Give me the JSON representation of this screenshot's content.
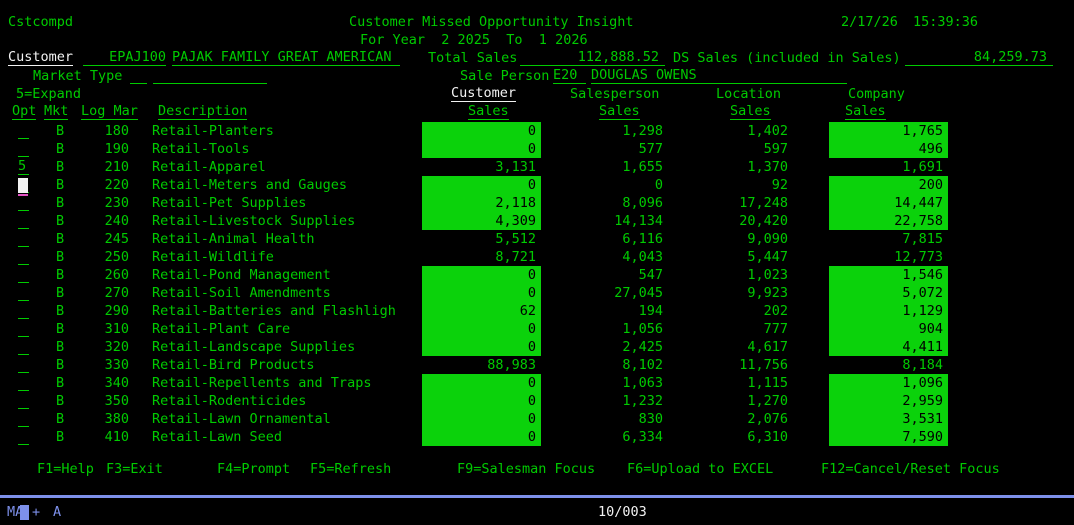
{
  "screen": {
    "program": "Cstcompd",
    "title": "Customer Missed Opportunity Insight",
    "date": "2/17/26",
    "time": "15:39:36",
    "subtitle": "For Year  2 2025  To  1 2026"
  },
  "header": {
    "customer_label": "Customer",
    "customer_code": "EPAJ100",
    "customer_name": "PAJAK FAMILY GREAT AMERICAN",
    "total_sales_label": "Total Sales",
    "total_sales_value": "112,888.52",
    "ds_sales_label": "DS Sales (included in Sales)",
    "ds_sales_value": "84,259.73",
    "market_type_label": "Market Type",
    "market_type_code": "",
    "market_type_desc": "",
    "sale_person_label": "Sale Person",
    "sale_person_code": "E20",
    "sale_person_name": "DOUGLAS OWENS",
    "expand_hint": "5=Expand"
  },
  "table": {
    "headers": {
      "opt": "Opt",
      "mkt": "Mkt",
      "logmar": "Log Mar",
      "description": "Description",
      "customer": "Customer",
      "salesperson": "Salesperson",
      "location": "Location",
      "company": "Company",
      "sales": "Sales"
    },
    "rows": [
      {
        "opt": "",
        "mkt": "B",
        "logmar": "180",
        "desc": "Retail-Planters",
        "cust": "0",
        "sp": "1,298",
        "loc": "1,402",
        "co": "1,765",
        "cust_hl": true,
        "co_hl": true
      },
      {
        "opt": "",
        "mkt": "B",
        "logmar": "190",
        "desc": "Retail-Tools",
        "cust": "0",
        "sp": "577",
        "loc": "597",
        "co": "496",
        "cust_hl": true,
        "co_hl": true
      },
      {
        "opt": "5",
        "mkt": "B",
        "logmar": "210",
        "desc": "Retail-Apparel",
        "cust": "3,131",
        "sp": "1,655",
        "loc": "1,370",
        "co": "1,691",
        "cust_hl": false,
        "co_hl": false
      },
      {
        "opt": "",
        "mkt": "B",
        "logmar": "220",
        "desc": "Retail-Meters and Gauges",
        "cust": "0",
        "sp": "0",
        "loc": "92",
        "co": "200",
        "cust_hl": true,
        "co_hl": true
      },
      {
        "opt": "",
        "mkt": "B",
        "logmar": "230",
        "desc": "Retail-Pet Supplies",
        "cust": "2,118",
        "sp": "8,096",
        "loc": "17,248",
        "co": "14,447",
        "cust_hl": true,
        "co_hl": true
      },
      {
        "opt": "",
        "mkt": "B",
        "logmar": "240",
        "desc": "Retail-Livestock Supplies",
        "cust": "4,309",
        "sp": "14,134",
        "loc": "20,420",
        "co": "22,758",
        "cust_hl": true,
        "co_hl": true
      },
      {
        "opt": "",
        "mkt": "B",
        "logmar": "245",
        "desc": "Retail-Animal Health",
        "cust": "5,512",
        "sp": "6,116",
        "loc": "9,090",
        "co": "7,815",
        "cust_hl": false,
        "co_hl": false
      },
      {
        "opt": "",
        "mkt": "B",
        "logmar": "250",
        "desc": "Retail-Wildlife",
        "cust": "8,721",
        "sp": "4,043",
        "loc": "5,447",
        "co": "12,773",
        "cust_hl": false,
        "co_hl": false
      },
      {
        "opt": "",
        "mkt": "B",
        "logmar": "260",
        "desc": "Retail-Pond Management",
        "cust": "0",
        "sp": "547",
        "loc": "1,023",
        "co": "1,546",
        "cust_hl": true,
        "co_hl": true
      },
      {
        "opt": "",
        "mkt": "B",
        "logmar": "270",
        "desc": "Retail-Soil Amendments",
        "cust": "0",
        "sp": "27,045",
        "loc": "9,923",
        "co": "5,072",
        "cust_hl": true,
        "co_hl": true
      },
      {
        "opt": "",
        "mkt": "B",
        "logmar": "290",
        "desc": "Retail-Batteries and Flashligh",
        "cust": "62",
        "sp": "194",
        "loc": "202",
        "co": "1,129",
        "cust_hl": true,
        "co_hl": true
      },
      {
        "opt": "",
        "mkt": "B",
        "logmar": "310",
        "desc": "Retail-Plant Care",
        "cust": "0",
        "sp": "1,056",
        "loc": "777",
        "co": "904",
        "cust_hl": true,
        "co_hl": true
      },
      {
        "opt": "",
        "mkt": "B",
        "logmar": "320",
        "desc": "Retail-Landscape Supplies",
        "cust": "0",
        "sp": "2,425",
        "loc": "4,617",
        "co": "4,411",
        "cust_hl": true,
        "co_hl": true
      },
      {
        "opt": "",
        "mkt": "B",
        "logmar": "330",
        "desc": "Retail-Bird Products",
        "cust": "88,983",
        "sp": "8,102",
        "loc": "11,756",
        "co": "8,184",
        "cust_hl": false,
        "co_hl": false
      },
      {
        "opt": "",
        "mkt": "B",
        "logmar": "340",
        "desc": "Retail-Repellents and Traps",
        "cust": "0",
        "sp": "1,063",
        "loc": "1,115",
        "co": "1,096",
        "cust_hl": true,
        "co_hl": true
      },
      {
        "opt": "",
        "mkt": "B",
        "logmar": "350",
        "desc": "Retail-Rodenticides",
        "cust": "0",
        "sp": "1,232",
        "loc": "1,270",
        "co": "2,959",
        "cust_hl": true,
        "co_hl": true
      },
      {
        "opt": "",
        "mkt": "B",
        "logmar": "380",
        "desc": "Retail-Lawn Ornamental",
        "cust": "0",
        "sp": "830",
        "loc": "2,076",
        "co": "3,531",
        "cust_hl": true,
        "co_hl": true
      },
      {
        "opt": "",
        "mkt": "B",
        "logmar": "410",
        "desc": "Retail-Lawn Seed",
        "cust": "0",
        "sp": "6,334",
        "loc": "6,310",
        "co": "7,590",
        "cust_hl": true,
        "co_hl": true
      }
    ]
  },
  "fkeys": [
    "F1=Help",
    "F3=Exit",
    "F4=Prompt",
    "F5=Refresh",
    "F9=Salesman Focus",
    "F6=Upload to EXCEL",
    "F12=Cancel/Reset Focus"
  ],
  "oia": {
    "system_indicator": "MA",
    "plus": "+",
    "mode": "A",
    "cursor_pos": "10/003"
  },
  "colors": {
    "text_green": "#00cb00",
    "reverse_green": "#0bd20b",
    "white": "#f2f2f2",
    "oia_blue": "#7d90ea",
    "cursor_magenta": "#e455c4",
    "background": "#000000"
  }
}
